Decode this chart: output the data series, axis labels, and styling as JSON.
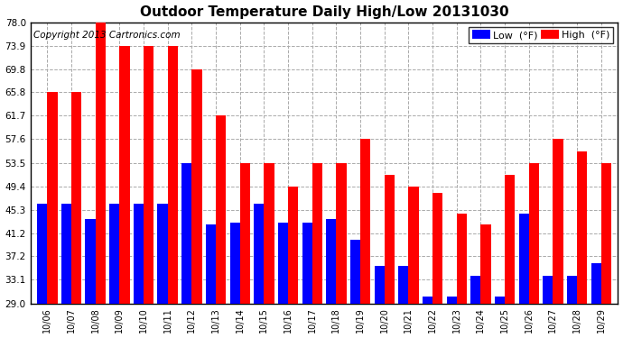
{
  "title": "Outdoor Temperature Daily High/Low 20131030",
  "copyright": "Copyright 2013 Cartronics.com",
  "dates": [
    "10/06",
    "10/07",
    "10/08",
    "10/09",
    "10/10",
    "10/11",
    "10/12",
    "10/13",
    "10/14",
    "10/15",
    "10/16",
    "10/17",
    "10/18",
    "10/19",
    "10/20",
    "10/21",
    "10/22",
    "10/23",
    "10/24",
    "10/25",
    "10/26",
    "10/27",
    "10/28",
    "10/29"
  ],
  "highs": [
    65.8,
    65.8,
    78.0,
    73.9,
    73.9,
    73.9,
    69.8,
    61.7,
    53.5,
    53.5,
    49.4,
    53.5,
    53.5,
    57.6,
    51.4,
    49.4,
    48.2,
    44.6,
    42.8,
    51.4,
    53.5,
    57.6,
    55.4,
    53.5
  ],
  "lows": [
    46.4,
    46.4,
    43.7,
    46.4,
    46.4,
    46.4,
    53.5,
    42.8,
    43.0,
    46.4,
    43.0,
    43.0,
    43.7,
    40.1,
    35.6,
    35.6,
    30.2,
    30.2,
    33.8,
    30.2,
    44.6,
    33.8,
    33.8,
    36.0
  ],
  "yticks": [
    29.0,
    33.1,
    37.2,
    41.2,
    45.3,
    49.4,
    53.5,
    57.6,
    61.7,
    65.8,
    69.8,
    73.9,
    78.0
  ],
  "low_color": "#0000ff",
  "high_color": "#ff0000",
  "bg_color": "#ffffff",
  "grid_color": "#aaaaaa",
  "title_fontsize": 11,
  "copyright_fontsize": 7.5,
  "bar_width": 0.42,
  "ylim_min": 29.0,
  "ylim_max": 78.0
}
